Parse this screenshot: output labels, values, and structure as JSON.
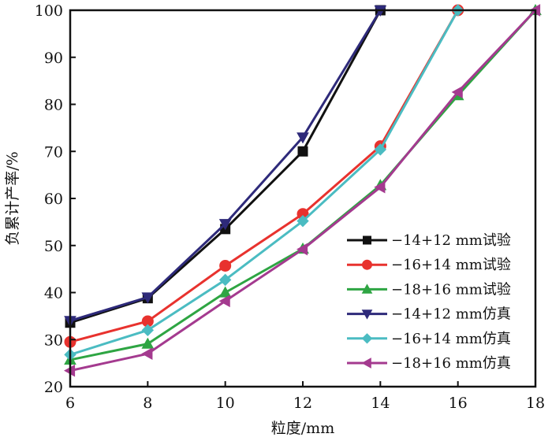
{
  "chart_data": {
    "type": "line",
    "title": "",
    "xlabel": "粒度/mm",
    "ylabel": "负累计产率/%",
    "xlim": [
      6,
      18
    ],
    "ylim": [
      20,
      100
    ],
    "xticks": [
      6,
      8,
      10,
      12,
      14,
      16,
      18
    ],
    "yticks": [
      20,
      30,
      40,
      50,
      60,
      70,
      80,
      90,
      100
    ],
    "grid": false,
    "legend_position": "bottom-right",
    "series": [
      {
        "name": "−14+12 mm试验",
        "color": "#111111",
        "marker": "square",
        "x": [
          6,
          8,
          10,
          12,
          14
        ],
        "y": [
          33.6,
          38.8,
          53.5,
          70.0,
          100
        ]
      },
      {
        "name": "−16+14 mm试验",
        "color": "#e8322e",
        "marker": "circle",
        "x": [
          6,
          8,
          10,
          12,
          14,
          16
        ],
        "y": [
          29.5,
          33.9,
          45.7,
          56.7,
          71.1,
          100
        ]
      },
      {
        "name": "−18+16 mm试验",
        "color": "#2ea543",
        "marker": "triangle-up",
        "x": [
          6,
          8,
          10,
          12,
          14,
          16,
          18
        ],
        "y": [
          25.7,
          29.1,
          40.0,
          49.3,
          62.8,
          81.9,
          100
        ]
      },
      {
        "name": "−14+12 mm仿真",
        "color": "#2e2a7a",
        "marker": "triangle-down",
        "x": [
          6,
          8,
          10,
          12,
          14
        ],
        "y": [
          34.0,
          39.0,
          54.6,
          73.0,
          100
        ]
      },
      {
        "name": "−16+14 mm仿真",
        "color": "#4bbcc2",
        "marker": "diamond",
        "x": [
          6,
          8,
          10,
          12,
          14,
          16
        ],
        "y": [
          26.8,
          32.0,
          42.7,
          55.2,
          70.4,
          100
        ]
      },
      {
        "name": "−18+16 mm仿真",
        "color": "#a43a8f",
        "marker": "triangle-left",
        "x": [
          6,
          8,
          10,
          12,
          14,
          16,
          18
        ],
        "y": [
          23.4,
          27.0,
          38.2,
          49.2,
          62.4,
          82.6,
          100
        ]
      }
    ]
  }
}
